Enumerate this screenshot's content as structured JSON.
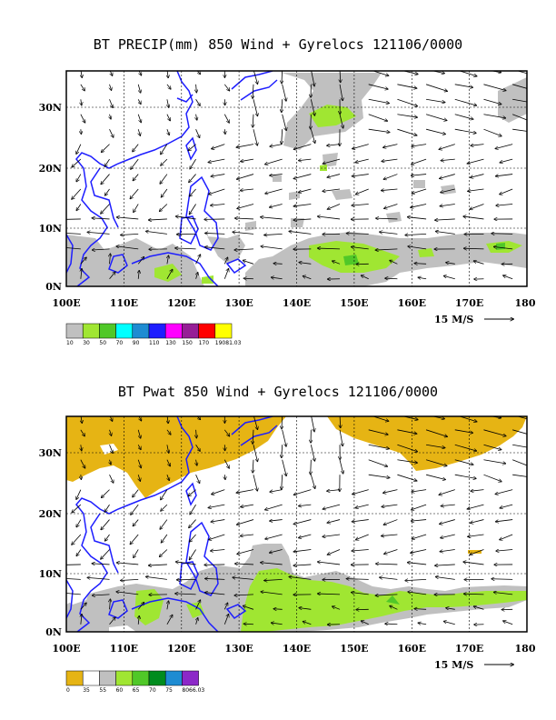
{
  "panels": [
    {
      "title": "BT PRECIP(mm) 850 Wind + Gyrelocs 121106/0000",
      "x_ticks": [
        "100E",
        "110E",
        "120E",
        "130E",
        "140E",
        "150E",
        "160E",
        "170E",
        "180"
      ],
      "y_ticks": [
        "30N",
        "20N",
        "10N",
        "0N"
      ],
      "ref_vector": "15 M/S",
      "colorbar": {
        "colors": [
          "#c0c0c0",
          "#a0e632",
          "#50c828",
          "#00ffff",
          "#1e8cd2",
          "#1e1eff",
          "#ff00ff",
          "#961e96",
          "#ff0000",
          "#ffff00"
        ],
        "labels": [
          "10",
          "30",
          "50",
          "70",
          "90",
          "110",
          "130",
          "150",
          "170",
          "19081.03"
        ]
      }
    },
    {
      "title": "BT Pwat 850 Wind + Gyrelocs 121106/0000",
      "x_ticks": [
        "100E",
        "110E",
        "120E",
        "130E",
        "140E",
        "150E",
        "160E",
        "170E",
        "180"
      ],
      "y_ticks": [
        "30N",
        "20N",
        "10N",
        "0N"
      ],
      "ref_vector": "15 M/S",
      "colorbar": {
        "colors": [
          "#e6b414",
          "#ffffff",
          "#c0c0c0",
          "#a0e632",
          "#50c828",
          "#008c1e",
          "#1e8cd2",
          "#8c28c8"
        ],
        "labels": [
          "0",
          "35",
          "55",
          "60",
          "65",
          "70",
          "75",
          "8066.03"
        ]
      }
    }
  ],
  "colors": {
    "coast": "#1e1eff",
    "precip_gray": "#c0c0c0",
    "precip_green": "#a0e632",
    "pwat_gold": "#e6b414"
  }
}
